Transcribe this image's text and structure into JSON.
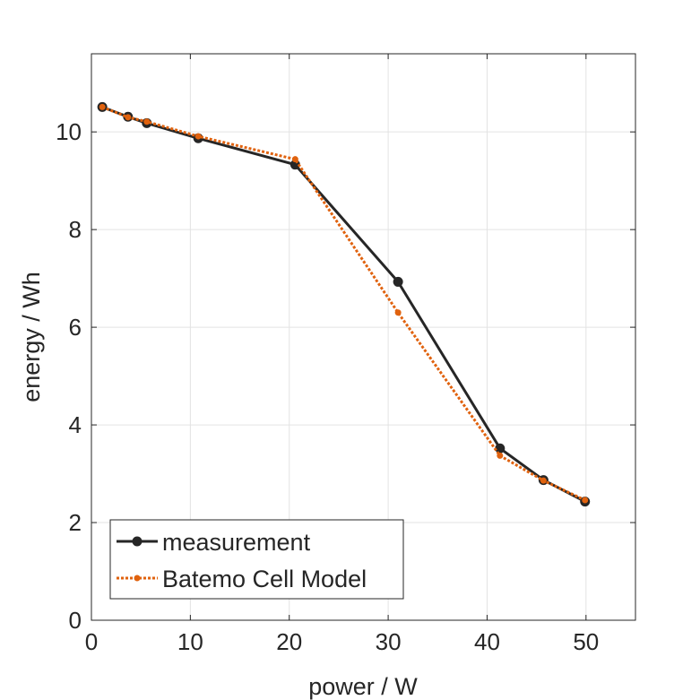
{
  "chart_data": {
    "type": "line",
    "title": "",
    "xlabel": "power / W",
    "ylabel": "energy / Wh",
    "xlim": [
      0,
      55
    ],
    "ylim": [
      0,
      11.6
    ],
    "xticks": [
      0,
      10,
      20,
      30,
      40,
      50
    ],
    "yticks": [
      0,
      2,
      4,
      6,
      8,
      10
    ],
    "grid": true,
    "legend_position": "bottom-left",
    "series": [
      {
        "name": "measurement",
        "color": "#262626",
        "line_style": "solid",
        "marker": "filled-circle",
        "x": [
          1.1,
          3.7,
          5.6,
          10.8,
          20.6,
          31.0,
          41.3,
          45.7,
          49.9
        ],
        "y": [
          10.51,
          10.31,
          10.18,
          9.87,
          9.33,
          6.93,
          3.52,
          2.87,
          2.43
        ]
      },
      {
        "name": "Batemo Cell Model",
        "color": "#E0620E",
        "line_style": "dotted",
        "marker": "small-dot",
        "x": [
          1.1,
          3.7,
          5.6,
          10.8,
          20.6,
          31.0,
          41.3,
          45.7,
          49.9
        ],
        "y": [
          10.51,
          10.3,
          10.21,
          9.91,
          9.44,
          6.3,
          3.37,
          2.86,
          2.46
        ]
      }
    ]
  }
}
